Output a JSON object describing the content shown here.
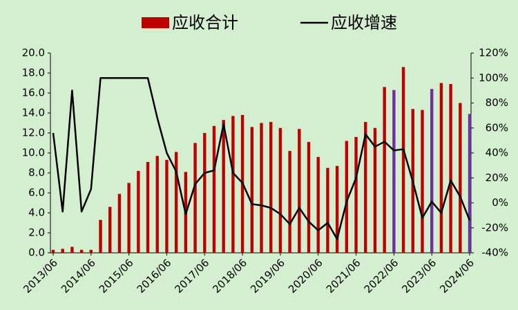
{
  "chart_data": {
    "type": "bar_line",
    "categories": [
      "2013/06",
      null,
      null,
      null,
      "2014/06",
      null,
      null,
      null,
      "2015/06",
      null,
      null,
      null,
      "2016/06",
      null,
      null,
      null,
      "2017/06",
      null,
      null,
      null,
      "2018/06",
      null,
      null,
      null,
      "2019/06",
      null,
      null,
      null,
      "2020/06",
      null,
      null,
      null,
      "2021/06",
      null,
      null,
      null,
      "2022/06",
      null,
      null,
      null,
      "2023/06",
      null,
      null,
      null,
      "2024/06"
    ],
    "series": [
      {
        "name": "应收合计",
        "type": "bar",
        "axis": "y",
        "color": "#c00000",
        "colors": [
          "#c00000",
          "#c00000",
          "#c00000",
          "#c00000",
          "#c00000",
          "#c00000",
          "#c00000",
          "#c00000",
          "#c00000",
          "#c00000",
          "#c00000",
          "#c00000",
          "#c00000",
          "#c00000",
          "#c00000",
          "#c00000",
          "#c00000",
          "#c00000",
          "#c00000",
          "#c00000",
          "#c00000",
          "#c00000",
          "#c00000",
          "#c00000",
          "#c00000",
          "#c00000",
          "#c00000",
          "#c00000",
          "#c00000",
          "#c00000",
          "#c00000",
          "#c00000",
          "#c00000",
          "#c00000",
          "#c00000",
          "#c00000",
          "#7030a0",
          "#c00000",
          "#c00000",
          "#c00000",
          "#7030a0",
          "#c00000",
          "#c00000",
          "#c00000",
          "#7030a0"
        ],
        "values": [
          0.3,
          0.4,
          0.6,
          0.3,
          0.3,
          3.3,
          4.6,
          5.9,
          7.0,
          8.2,
          9.1,
          9.7,
          9.3,
          10.1,
          8.1,
          11.0,
          12.0,
          12.7,
          13.3,
          13.7,
          13.8,
          12.6,
          13.0,
          13.1,
          12.5,
          10.2,
          12.4,
          11.1,
          9.6,
          8.5,
          8.7,
          11.2,
          11.6,
          13.1,
          12.5,
          16.6,
          16.3,
          18.6,
          14.4,
          14.3,
          16.4,
          17.0,
          16.9,
          15.0,
          13.9
        ]
      },
      {
        "name": "应收增速",
        "type": "line",
        "axis": "y2",
        "color": "#000000",
        "values": [
          56,
          -7,
          90,
          -7,
          11,
          100,
          100,
          100,
          100,
          100,
          100,
          68,
          40,
          25,
          -9,
          15,
          24,
          26,
          63,
          24,
          16,
          -1,
          -2,
          -4,
          -9,
          -17,
          -4,
          -15,
          -22,
          -16,
          -29,
          1,
          20,
          55,
          45,
          49,
          42,
          43,
          17,
          -12,
          1,
          -8,
          18,
          5,
          -14
        ]
      }
    ],
    "ylim": [
      0,
      20
    ],
    "yticks": [
      {
        "value": 0,
        "label": "0.0"
      },
      {
        "value": 2,
        "label": "2.0"
      },
      {
        "value": 4,
        "label": "4.0"
      },
      {
        "value": 6,
        "label": "6.0"
      },
      {
        "value": 8,
        "label": "8.0"
      },
      {
        "value": 10,
        "label": "10.0"
      },
      {
        "value": 12,
        "label": "12.0"
      },
      {
        "value": 14,
        "label": "14.0"
      },
      {
        "value": 16,
        "label": "16.0"
      },
      {
        "value": 18,
        "label": "18.0"
      },
      {
        "value": 20,
        "label": "20.0"
      }
    ],
    "y2lim": [
      -40,
      120
    ],
    "y2ticks": [
      {
        "value": -40,
        "label": "-40%"
      },
      {
        "value": -20,
        "label": "-20%"
      },
      {
        "value": 0,
        "label": "0%"
      },
      {
        "value": 20,
        "label": "20%"
      },
      {
        "value": 40,
        "label": "40%"
      },
      {
        "value": 60,
        "label": "60%"
      },
      {
        "value": 80,
        "label": "80%"
      },
      {
        "value": 100,
        "label": "100%"
      },
      {
        "value": 120,
        "label": "120%"
      }
    ],
    "legend": "top",
    "grid": false
  }
}
